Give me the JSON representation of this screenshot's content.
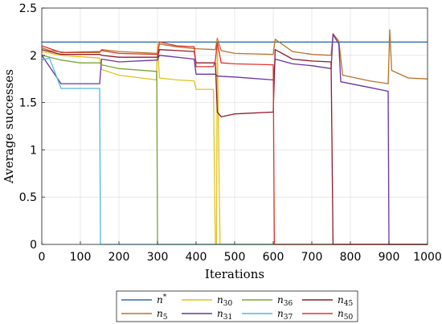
{
  "chart_data": {
    "type": "line",
    "xlabel": "Iterations",
    "ylabel": "Average successes",
    "xlim": [
      0,
      1000
    ],
    "ylim": [
      0,
      2.5
    ],
    "xticks": [
      0,
      100,
      200,
      300,
      400,
      500,
      600,
      700,
      800,
      900,
      1000
    ],
    "yticks": [
      0,
      0.5,
      1,
      1.5,
      2,
      2.5
    ],
    "xtick_labels": [
      "0",
      "100",
      "200",
      "300",
      "400",
      "500",
      "600",
      "700",
      "800",
      "900",
      "1000"
    ],
    "ytick_labels": [
      "0",
      "0.5",
      "1",
      "1.5",
      "2",
      "2.5"
    ],
    "grid": true,
    "legend_position": "bottom-center",
    "series": [
      {
        "name": "n*",
        "name_base": "n",
        "name_sup": "*",
        "name_sub": "",
        "color": "#2f6fb0",
        "points": [
          [
            0,
            2.14
          ],
          [
            1000,
            2.14
          ]
        ]
      },
      {
        "name": "n5",
        "name_base": "n",
        "name_sup": "",
        "name_sub": "5",
        "color": "#b8732a",
        "points": [
          [
            0,
            2.08
          ],
          [
            20,
            2.05
          ],
          [
            60,
            2.03
          ],
          [
            150,
            2.03
          ],
          [
            155,
            2.06
          ],
          [
            200,
            2.04
          ],
          [
            300,
            2.02
          ],
          [
            305,
            2.12
          ],
          [
            350,
            2.09
          ],
          [
            400,
            2.07
          ],
          [
            450,
            2.06
          ],
          [
            455,
            2.18
          ],
          [
            465,
            2.05
          ],
          [
            500,
            2.02
          ],
          [
            600,
            2.01
          ],
          [
            605,
            2.17
          ],
          [
            650,
            2.04
          ],
          [
            700,
            2.01
          ],
          [
            750,
            2.0
          ],
          [
            755,
            2.23
          ],
          [
            770,
            2.15
          ],
          [
            780,
            1.79
          ],
          [
            850,
            1.73
          ],
          [
            898,
            1.7
          ],
          [
            902,
            2.27
          ],
          [
            907,
            1.84
          ],
          [
            950,
            1.76
          ],
          [
            1000,
            1.75
          ]
        ]
      },
      {
        "name": "n30",
        "name_base": "n",
        "name_sup": "",
        "name_sub": "30",
        "color": "#e3c21c",
        "points": [
          [
            0,
            2.04
          ],
          [
            50,
            2.0
          ],
          [
            120,
            1.98
          ],
          [
            150,
            1.97
          ],
          [
            155,
            1.85
          ],
          [
            200,
            1.79
          ],
          [
            297,
            1.74
          ],
          [
            300,
            2.14
          ],
          [
            305,
            1.76
          ],
          [
            350,
            1.74
          ],
          [
            395,
            1.73
          ],
          [
            400,
            1.64
          ],
          [
            445,
            1.64
          ],
          [
            450,
            0.0
          ],
          [
            453,
            0.0
          ],
          [
            455,
            2.16
          ],
          [
            462,
            0.0
          ],
          [
            1000,
            0.0
          ]
        ]
      },
      {
        "name": "n31",
        "name_base": "n",
        "name_sup": "",
        "name_sub": "31",
        "color": "#6a34a3",
        "points": [
          [
            0,
            2.0
          ],
          [
            50,
            1.7
          ],
          [
            150,
            1.7
          ],
          [
            155,
            1.96
          ],
          [
            200,
            1.93
          ],
          [
            300,
            1.95
          ],
          [
            305,
            2.0
          ],
          [
            395,
            1.96
          ],
          [
            400,
            1.8
          ],
          [
            450,
            1.8
          ],
          [
            455,
            1.78
          ],
          [
            500,
            1.77
          ],
          [
            600,
            1.74
          ],
          [
            605,
            1.96
          ],
          [
            650,
            1.91
          ],
          [
            700,
            1.89
          ],
          [
            750,
            1.86
          ],
          [
            755,
            2.22
          ],
          [
            770,
            2.12
          ],
          [
            775,
            1.72
          ],
          [
            850,
            1.66
          ],
          [
            898,
            1.62
          ],
          [
            900,
            0.0
          ],
          [
            1000,
            0.0
          ]
        ]
      },
      {
        "name": "n36",
        "name_base": "n",
        "name_sup": "",
        "name_sub": "36",
        "color": "#7aa33a",
        "points": [
          [
            0,
            2.0
          ],
          [
            50,
            1.95
          ],
          [
            100,
            1.92
          ],
          [
            150,
            1.92
          ],
          [
            155,
            1.9
          ],
          [
            200,
            1.86
          ],
          [
            298,
            1.83
          ],
          [
            300,
            0.0
          ],
          [
            1000,
            0.0
          ]
        ]
      },
      {
        "name": "n37",
        "name_base": "n",
        "name_sup": "",
        "name_sub": "37",
        "color": "#4fb9df",
        "points": [
          [
            0,
            1.95
          ],
          [
            20,
            1.97
          ],
          [
            50,
            1.65
          ],
          [
            100,
            1.65
          ],
          [
            150,
            1.65
          ],
          [
            152,
            0.0
          ],
          [
            1000,
            0.0
          ]
        ]
      },
      {
        "name": "n45",
        "name_base": "n",
        "name_sup": "",
        "name_sub": "45",
        "color": "#8b1c2c",
        "points": [
          [
            0,
            2.06
          ],
          [
            50,
            2.01
          ],
          [
            150,
            2.01
          ],
          [
            155,
            2.0
          ],
          [
            200,
            1.98
          ],
          [
            300,
            1.98
          ],
          [
            305,
            2.06
          ],
          [
            350,
            2.05
          ],
          [
            395,
            2.04
          ],
          [
            400,
            1.92
          ],
          [
            450,
            1.92
          ],
          [
            455,
            1.4
          ],
          [
            465,
            1.35
          ],
          [
            500,
            1.38
          ],
          [
            600,
            1.4
          ],
          [
            605,
            2.06
          ],
          [
            650,
            1.96
          ],
          [
            700,
            1.94
          ],
          [
            750,
            1.93
          ],
          [
            755,
            0.0
          ],
          [
            1000,
            0.0
          ]
        ]
      },
      {
        "name": "n50",
        "name_base": "n",
        "name_sup": "",
        "name_sub": "50",
        "color": "#e0342e",
        "points": [
          [
            0,
            2.1
          ],
          [
            50,
            2.03
          ],
          [
            150,
            2.04
          ],
          [
            155,
            2.05
          ],
          [
            200,
            2.02
          ],
          [
            300,
            2.01
          ],
          [
            305,
            2.14
          ],
          [
            350,
            2.1
          ],
          [
            395,
            2.09
          ],
          [
            400,
            1.88
          ],
          [
            445,
            1.88
          ],
          [
            450,
            1.95
          ],
          [
            455,
            2.14
          ],
          [
            465,
            1.92
          ],
          [
            500,
            1.91
          ],
          [
            600,
            1.9
          ],
          [
            603,
            0.0
          ],
          [
            1000,
            0.0
          ]
        ]
      }
    ],
    "legend_order": [
      "n*",
      "n30",
      "n36",
      "n45",
      "n5",
      "n31",
      "n37",
      "n50"
    ]
  }
}
